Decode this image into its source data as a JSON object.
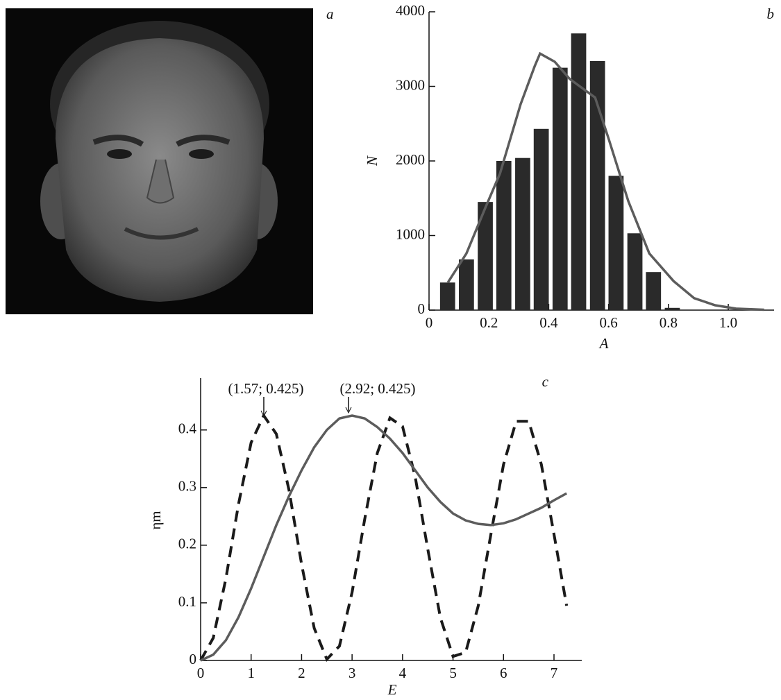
{
  "image": {
    "panel_label": "a"
  },
  "chart_data": [
    {
      "type": "bar",
      "panel_label": "b",
      "xlabel": "A",
      "ylabel": "N",
      "x": [
        0.062,
        0.125,
        0.188,
        0.25,
        0.313,
        0.375,
        0.438,
        0.5,
        0.563,
        0.625,
        0.688,
        0.75,
        0.813
      ],
      "values": [
        370,
        680,
        1450,
        2000,
        2040,
        2430,
        3250,
        3710,
        3340,
        1800,
        1030,
        510,
        30
      ],
      "color": "#2a2a2a",
      "curve": {
        "color": "#5c5c5c",
        "x": [
          0.063,
          0.125,
          0.188,
          0.237,
          0.306,
          0.353,
          0.371,
          0.42,
          0.47,
          0.555,
          0.6,
          0.666,
          0.736,
          0.817,
          0.886,
          0.956,
          1.026,
          1.12
        ],
        "values": [
          370,
          760,
          1370,
          1830,
          2760,
          3270,
          3440,
          3330,
          3100,
          2850,
          2300,
          1460,
          760,
          390,
          160,
          65,
          20,
          5
        ]
      },
      "xlim": [
        0,
        1.153
      ],
      "ylim": [
        0,
        4000
      ],
      "xticks": [
        0,
        0.2,
        0.4,
        0.6,
        0.8,
        {
          "value": 1,
          "label": "1.0"
        }
      ],
      "yticks": [
        0,
        1000,
        2000,
        3000,
        4000
      ]
    },
    {
      "type": "line",
      "panel_label": "c",
      "xlabel": "E",
      "ylabel": "ηm",
      "annotations": [
        "(1.57; 0.425)",
        "(2.92; 0.425)"
      ],
      "x": [
        0,
        0.25,
        0.5,
        0.75,
        1,
        1.25,
        1.5,
        1.75,
        2,
        2.25,
        2.5,
        2.75,
        3,
        3.25,
        3.5,
        3.75,
        4,
        4.25,
        4.5,
        4.75,
        5,
        5.25,
        5.5,
        5.75,
        6,
        6.25,
        6.5,
        6.75,
        7,
        7.25
      ],
      "series": [
        {
          "color": "#1a1a1a",
          "dashed": true,
          "values": [
            0,
            0.039,
            0.142,
            0.271,
            0.378,
            0.425,
            0.393,
            0.296,
            0.167,
            0.056,
            0.002,
            0.025,
            0.118,
            0.245,
            0.36,
            0.421,
            0.406,
            0.319,
            0.193,
            0.074,
            0.007,
            0.014,
            0.095,
            0.219,
            0.34,
            0.415,
            0.415,
            0.34,
            0.219,
            0.095
          ]
        },
        {
          "color": "#5c5c5c",
          "dashed": false,
          "values": [
            0,
            0.01,
            0.035,
            0.075,
            0.125,
            0.18,
            0.235,
            0.285,
            0.33,
            0.37,
            0.4,
            0.42,
            0.425,
            0.42,
            0.405,
            0.385,
            0.36,
            0.33,
            0.3,
            0.275,
            0.255,
            0.243,
            0.237,
            0.235,
            0.238,
            0.245,
            0.255,
            0.265,
            0.278,
            0.29
          ]
        }
      ],
      "xlim": [
        0,
        7.55
      ],
      "ylim": [
        0,
        0.49
      ],
      "xticks": [
        0,
        1,
        2,
        3,
        4,
        5,
        6,
        7
      ],
      "yticks": [
        0,
        0.1,
        0.2,
        0.3,
        0.4
      ]
    }
  ]
}
